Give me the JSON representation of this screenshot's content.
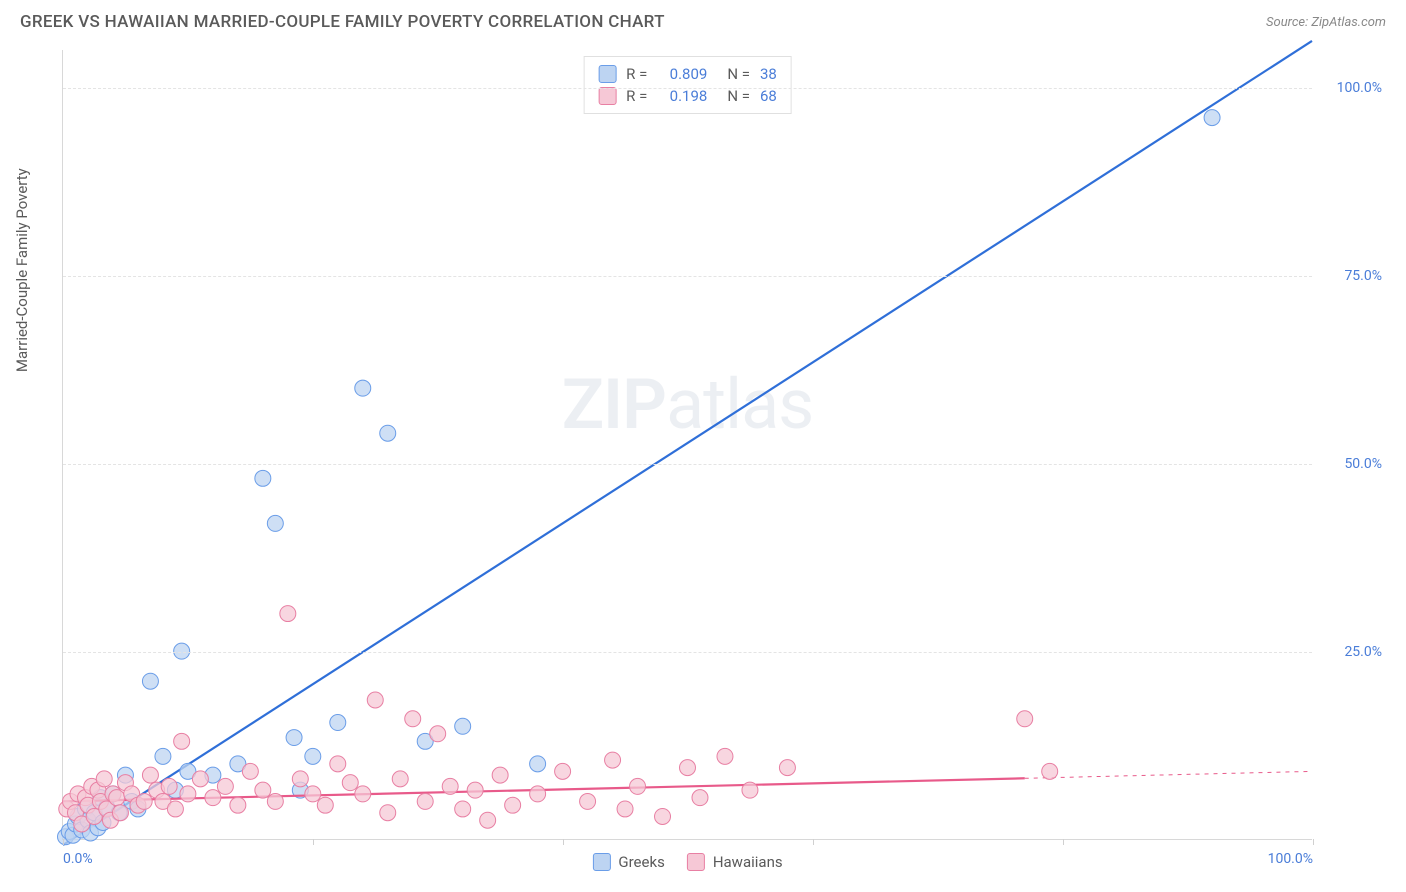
{
  "header": {
    "title": "GREEK VS HAWAIIAN MARRIED-COUPLE FAMILY POVERTY CORRELATION CHART",
    "source": "Source: ZipAtlas.com"
  },
  "chart": {
    "type": "scatter",
    "y_axis_label": "Married-Couple Family Poverty",
    "background_color": "#ffffff",
    "grid_color": "#e4e4e4",
    "axis_color": "#d8d8d8",
    "tick_label_color": "#4a7dd8",
    "label_fontsize": 15,
    "tick_fontsize": 14,
    "xlim": [
      0,
      100
    ],
    "ylim": [
      0,
      105
    ],
    "y_ticks": [
      25,
      50,
      75,
      100
    ],
    "y_tick_labels": [
      "25.0%",
      "50.0%",
      "75.0%",
      "100.0%"
    ],
    "x_ticks": [
      0,
      20,
      40,
      60,
      80,
      100
    ],
    "x_tick_labels_shown": {
      "0": "0.0%",
      "100": "100.0%"
    },
    "watermark": "ZIPatlas",
    "series": [
      {
        "key": "greeks",
        "label": "Greeks",
        "color_fill": "#bdd4f2",
        "color_stroke": "#6a9de8",
        "marker_size": 8,
        "marker_opacity": 0.75,
        "stats": {
          "R": "0.809",
          "N": "38"
        },
        "trend": {
          "slope": 1.07,
          "intercept": -0.8,
          "color": "#2f6fd8",
          "width": 2.2,
          "confident_xmax": 100
        },
        "points": [
          [
            0.2,
            0.3
          ],
          [
            0.5,
            1.0
          ],
          [
            0.8,
            0.5
          ],
          [
            1.0,
            2.0
          ],
          [
            1.2,
            3.0
          ],
          [
            1.5,
            1.2
          ],
          [
            1.8,
            4.0
          ],
          [
            2.0,
            2.5
          ],
          [
            2.2,
            0.8
          ],
          [
            2.5,
            3.5
          ],
          [
            2.8,
            1.5
          ],
          [
            3.0,
            5.5
          ],
          [
            3.2,
            2.2
          ],
          [
            3.5,
            4.2
          ],
          [
            4.0,
            6.0
          ],
          [
            4.5,
            3.5
          ],
          [
            5.0,
            8.5
          ],
          [
            5.5,
            5.0
          ],
          [
            6.0,
            4.0
          ],
          [
            7.0,
            21.0
          ],
          [
            8.0,
            11.0
          ],
          [
            9.0,
            6.5
          ],
          [
            9.5,
            25.0
          ],
          [
            10.0,
            9.0
          ],
          [
            12.0,
            8.5
          ],
          [
            14.0,
            10.0
          ],
          [
            16.0,
            48.0
          ],
          [
            17.0,
            42.0
          ],
          [
            18.5,
            13.5
          ],
          [
            19.0,
            6.5
          ],
          [
            20.0,
            11.0
          ],
          [
            22.0,
            15.5
          ],
          [
            24.0,
            60.0
          ],
          [
            26.0,
            54.0
          ],
          [
            29.0,
            13.0
          ],
          [
            32.0,
            15.0
          ],
          [
            38.0,
            10.0
          ],
          [
            92.0,
            96.0
          ]
        ]
      },
      {
        "key": "hawaiians",
        "label": "Hawaiians",
        "color_fill": "#f6c8d6",
        "color_stroke": "#e87fa3",
        "marker_size": 8,
        "marker_opacity": 0.75,
        "stats": {
          "R": "0.198",
          "N": "68"
        },
        "trend": {
          "slope": 0.04,
          "intercept": 5.0,
          "color": "#e85a8a",
          "width": 2.2,
          "confident_xmax": 77,
          "dash_after": true
        },
        "points": [
          [
            0.3,
            4.0
          ],
          [
            0.6,
            5.0
          ],
          [
            1.0,
            3.5
          ],
          [
            1.2,
            6.0
          ],
          [
            1.5,
            2.0
          ],
          [
            1.8,
            5.5
          ],
          [
            2.0,
            4.5
          ],
          [
            2.3,
            7.0
          ],
          [
            2.5,
            3.0
          ],
          [
            2.8,
            6.5
          ],
          [
            3.0,
            5.0
          ],
          [
            3.3,
            8.0
          ],
          [
            3.5,
            4.0
          ],
          [
            3.8,
            2.5
          ],
          [
            4.0,
            6.0
          ],
          [
            4.3,
            5.5
          ],
          [
            4.6,
            3.5
          ],
          [
            5.0,
            7.5
          ],
          [
            5.5,
            6.0
          ],
          [
            6.0,
            4.5
          ],
          [
            6.5,
            5.0
          ],
          [
            7.0,
            8.5
          ],
          [
            7.5,
            6.5
          ],
          [
            8.0,
            5.0
          ],
          [
            8.5,
            7.0
          ],
          [
            9.0,
            4.0
          ],
          [
            9.5,
            13.0
          ],
          [
            10.0,
            6.0
          ],
          [
            11.0,
            8.0
          ],
          [
            12.0,
            5.5
          ],
          [
            13.0,
            7.0
          ],
          [
            14.0,
            4.5
          ],
          [
            15.0,
            9.0
          ],
          [
            16.0,
            6.5
          ],
          [
            17.0,
            5.0
          ],
          [
            18.0,
            30.0
          ],
          [
            19.0,
            8.0
          ],
          [
            20.0,
            6.0
          ],
          [
            21.0,
            4.5
          ],
          [
            22.0,
            10.0
          ],
          [
            23.0,
            7.5
          ],
          [
            24.0,
            6.0
          ],
          [
            25.0,
            18.5
          ],
          [
            26.0,
            3.5
          ],
          [
            27.0,
            8.0
          ],
          [
            28.0,
            16.0
          ],
          [
            29.0,
            5.0
          ],
          [
            30.0,
            14.0
          ],
          [
            31.0,
            7.0
          ],
          [
            32.0,
            4.0
          ],
          [
            33.0,
            6.5
          ],
          [
            34.0,
            2.5
          ],
          [
            35.0,
            8.5
          ],
          [
            36.0,
            4.5
          ],
          [
            38.0,
            6.0
          ],
          [
            40.0,
            9.0
          ],
          [
            42.0,
            5.0
          ],
          [
            44.0,
            10.5
          ],
          [
            45.0,
            4.0
          ],
          [
            46.0,
            7.0
          ],
          [
            48.0,
            3.0
          ],
          [
            50.0,
            9.5
          ],
          [
            51.0,
            5.5
          ],
          [
            53.0,
            11.0
          ],
          [
            55.0,
            6.5
          ],
          [
            58.0,
            9.5
          ],
          [
            77.0,
            16.0
          ],
          [
            79.0,
            9.0
          ]
        ]
      }
    ],
    "legend_position": "top-center",
    "bottom_legend_labels": [
      "Greeks",
      "Hawaiians"
    ]
  }
}
